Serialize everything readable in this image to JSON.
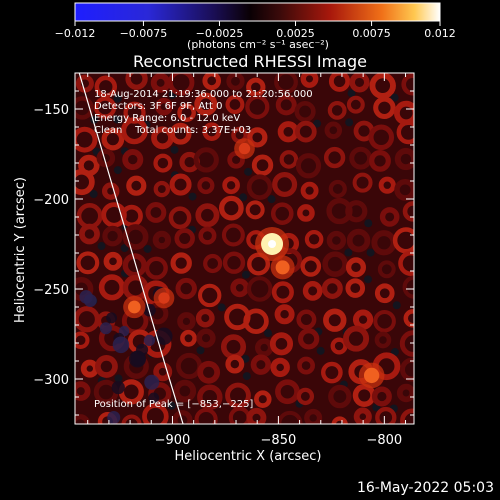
{
  "colorbar": {
    "ticks": [
      "-0.012",
      "-0.0075",
      "-0.0025",
      "0.0025",
      "0.0075",
      "0.012"
    ],
    "units": "(photons cm⁻² s⁻¹ asec⁻²)",
    "range": [
      -0.012,
      0.012
    ]
  },
  "chart_data": {
    "type": "heatmap",
    "title": "Reconstructed RHESSI Image",
    "xlabel": "Heliocentric X (arcsec)",
    "ylabel": "Heliocentric Y (arcsec)",
    "xlim": [
      -946,
      -786
    ],
    "ylim": [
      -325,
      -130
    ],
    "xticks": [
      -900,
      -850,
      -800
    ],
    "xtick_labels": [
      "−900",
      "−850",
      "−800"
    ],
    "yticks": [
      -150,
      -200,
      -250,
      -300
    ],
    "ytick_labels": [
      "−150",
      "−200",
      "−250",
      "−300"
    ],
    "annotations": [
      "18-Aug-2014 21:19:36.000 to 21:20:56.000",
      "Detectors: 3F 6F 9F, Att 0",
      "Energy Range: 6.0 - 12.0 keV",
      "Clean    Total counts: 3.37E+03"
    ],
    "peak_label": "Position of Peak = [−853,−225]",
    "peak": [
      -853,
      -225
    ],
    "sources": [
      {
        "x": -853,
        "y": -225,
        "value": 0.012
      },
      {
        "x": -848,
        "y": -238,
        "value": 0.006
      },
      {
        "x": -806,
        "y": -298,
        "value": 0.007
      },
      {
        "x": -918,
        "y": -260,
        "value": 0.005
      },
      {
        "x": -866,
        "y": -172,
        "value": 0.004
      },
      {
        "x": -904,
        "y": -255,
        "value": 0.004
      }
    ],
    "limb": [
      [
        -944,
        -130
      ],
      [
        -934,
        -170
      ],
      [
        -924,
        -210
      ],
      [
        -914,
        -250
      ],
      [
        -904,
        -290
      ],
      [
        -895,
        -325
      ]
    ]
  },
  "footer_date": "16-May-2022 05:03"
}
